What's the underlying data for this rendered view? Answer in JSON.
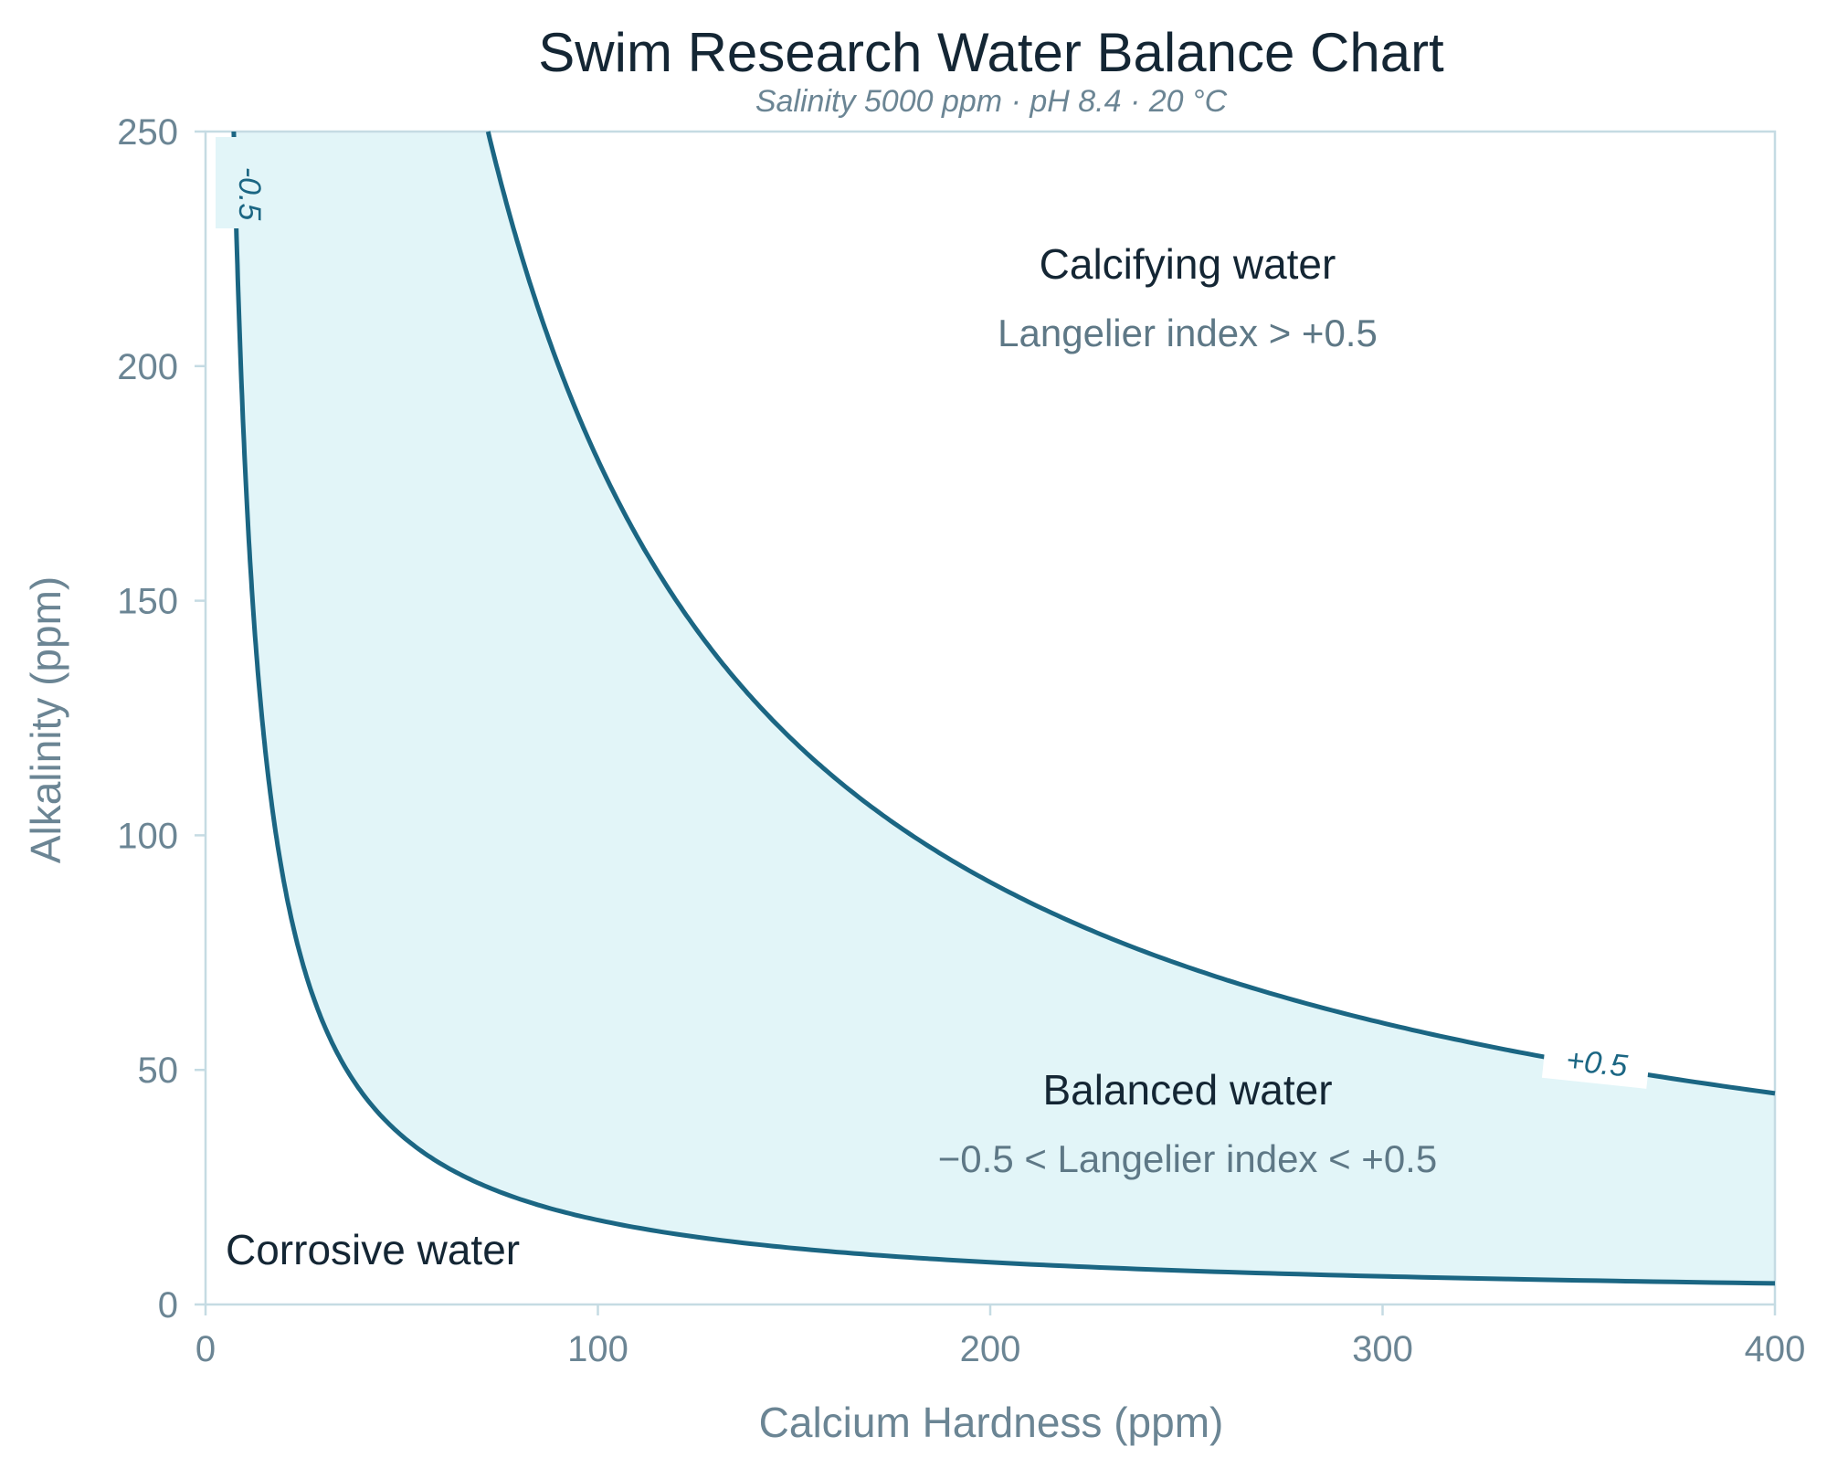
{
  "chart_data": {
    "type": "line",
    "title": "Swim Research Water Balance Chart",
    "subtitle": "Salinity 5000 ppm  ·  pH 8.4  ·  20 °C",
    "xlabel": "Calcium Hardness  (ppm)",
    "ylabel": "Alkalinity  (ppm)",
    "xlim": [
      0,
      400
    ],
    "ylim": [
      0,
      250
    ],
    "x_ticks": [
      "0",
      "100",
      "200",
      "300",
      "400"
    ],
    "y_ticks": [
      "0",
      "50",
      "100",
      "150",
      "200",
      "250"
    ],
    "grid": false,
    "series": [
      {
        "name": "-0.5",
        "label": "-0.5",
        "x": [
          7.2,
          8,
          10,
          12,
          15,
          20,
          25,
          30,
          40,
          50,
          60,
          80,
          100,
          150,
          200,
          250,
          300,
          350,
          400
        ],
        "y": [
          250,
          225,
          180,
          150,
          120,
          90,
          72,
          60,
          45,
          36,
          30,
          22.5,
          18,
          12,
          9,
          7.2,
          6,
          5.1,
          4.5
        ]
      },
      {
        "name": "+0.5",
        "label": "+0.5",
        "x": [
          72,
          80,
          90,
          100,
          120,
          150,
          175,
          200,
          250,
          300,
          350,
          400
        ],
        "y": [
          250,
          225,
          200,
          180,
          150,
          120,
          103,
          90,
          72,
          60,
          51.4,
          45
        ]
      }
    ],
    "fill_between": {
      "from_series": "-0.5",
      "to_series": "+0.5",
      "color": "#e2f5f8"
    },
    "regions": [
      {
        "title": "Calcifying water",
        "description": "Langelier index > +0.5"
      },
      {
        "title": "Balanced water",
        "description": "−0.5 < Langelier index < +0.5"
      },
      {
        "title": "Corrosive water"
      }
    ],
    "colors": {
      "curve": "#1b6683",
      "fill": "#e2f5f8",
      "axis": "#c5dbe3",
      "text": "#142634",
      "muted": "#6b8594"
    }
  }
}
